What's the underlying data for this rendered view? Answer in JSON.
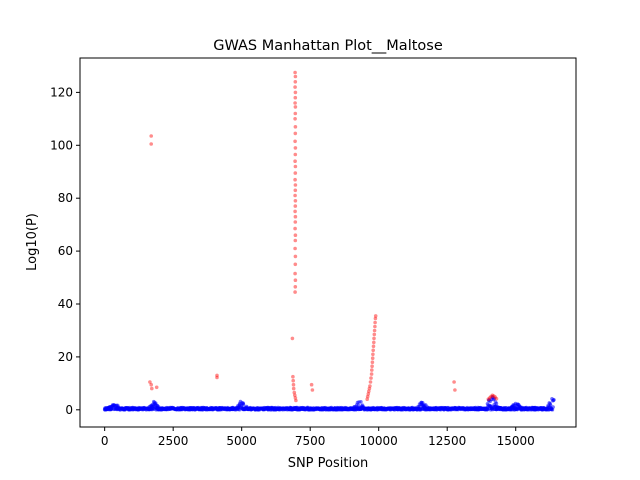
{
  "chart_data": {
    "type": "scatter",
    "title": "GWAS Manhattan Plot__Maltose",
    "xlabel": "SNP Position",
    "ylabel": "Log10(P)",
    "xlim": [
      -900,
      17200
    ],
    "ylim": [
      -6.5,
      133
    ],
    "xticks": [
      0,
      2500,
      5000,
      7500,
      10000,
      12500,
      15000
    ],
    "xtick_labels": [
      "0",
      "2500",
      "5000",
      "7500",
      "10000",
      "12500",
      "15000"
    ],
    "yticks": [
      0,
      20,
      40,
      60,
      80,
      100,
      120
    ],
    "ytick_labels": [
      "0",
      "20",
      "40",
      "60",
      "80",
      "100",
      "120"
    ],
    "grid": false,
    "legend": "none",
    "colors": {
      "below_threshold": "#0000ff",
      "above_threshold": "#ff0000"
    },
    "series": [
      {
        "color": "#ff0000",
        "points": [
          [
            1700,
            103.5
          ],
          [
            1700,
            100.5
          ],
          [
            1650,
            10.5
          ],
          [
            1700,
            9.5
          ],
          [
            1720,
            8.0
          ],
          [
            1900,
            8.5
          ],
          [
            4100,
            13.0
          ],
          [
            4100,
            12.2
          ],
          [
            7550,
            9.5
          ],
          [
            7580,
            7.5
          ],
          [
            12750,
            10.5
          ],
          [
            12780,
            7.5
          ],
          [
            6850,
            27.0
          ],
          [
            6870,
            12.5
          ],
          [
            6880,
            11.0
          ],
          [
            6890,
            9.5
          ],
          [
            6900,
            8.0
          ],
          [
            6920,
            6.5
          ],
          [
            6940,
            5.5
          ],
          [
            6960,
            4.5
          ],
          [
            6980,
            3.5
          ],
          [
            6950,
            127.5
          ],
          [
            6960,
            126.0
          ],
          [
            6955,
            124.0
          ],
          [
            6950,
            122.0
          ],
          [
            6960,
            120.0
          ],
          [
            6955,
            118.0
          ],
          [
            6950,
            116.0
          ],
          [
            6960,
            114.5
          ],
          [
            6955,
            112.0
          ],
          [
            6950,
            110.0
          ],
          [
            6960,
            107.0
          ],
          [
            6955,
            104.5
          ],
          [
            6950,
            101.5
          ],
          [
            6960,
            99.0
          ],
          [
            6955,
            96.5
          ],
          [
            6950,
            94.0
          ],
          [
            6960,
            92.0
          ],
          [
            6955,
            89.5
          ],
          [
            6950,
            87.0
          ],
          [
            6960,
            85.0
          ],
          [
            6955,
            83.0
          ],
          [
            6950,
            81.0
          ],
          [
            6960,
            79.0
          ],
          [
            6955,
            77.0
          ],
          [
            6950,
            75.0
          ],
          [
            6960,
            73.0
          ],
          [
            6955,
            71.0
          ],
          [
            6950,
            68.5
          ],
          [
            6960,
            66.0
          ],
          [
            6955,
            64.0
          ],
          [
            6950,
            61.0
          ],
          [
            6960,
            58.0
          ],
          [
            6955,
            55.0
          ],
          [
            6950,
            51.5
          ],
          [
            6960,
            49.0
          ],
          [
            6955,
            46.5
          ],
          [
            6950,
            44.5
          ],
          [
            9580,
            4.0
          ],
          [
            9600,
            5.0
          ],
          [
            9620,
            6.0
          ],
          [
            9640,
            7.0
          ],
          [
            9660,
            8.0
          ],
          [
            9680,
            9.0
          ],
          [
            9700,
            10.5
          ],
          [
            9720,
            12.0
          ],
          [
            9740,
            13.5
          ],
          [
            9750,
            15.0
          ],
          [
            9760,
            16.5
          ],
          [
            9770,
            18.0
          ],
          [
            9780,
            19.5
          ],
          [
            9790,
            21.0
          ],
          [
            9800,
            22.5
          ],
          [
            9810,
            24.0
          ],
          [
            9820,
            25.5
          ],
          [
            9830,
            27.0
          ],
          [
            9840,
            28.5
          ],
          [
            9850,
            30.0
          ],
          [
            9860,
            31.5
          ],
          [
            9870,
            33.0
          ],
          [
            9880,
            34.5
          ],
          [
            9890,
            35.5
          ],
          [
            14000,
            4.0
          ],
          [
            14050,
            4.5
          ],
          [
            14100,
            5.0
          ],
          [
            14150,
            5.5
          ],
          [
            14200,
            5.2
          ],
          [
            14250,
            4.8
          ],
          [
            14300,
            4.2
          ]
        ]
      }
    ]
  }
}
